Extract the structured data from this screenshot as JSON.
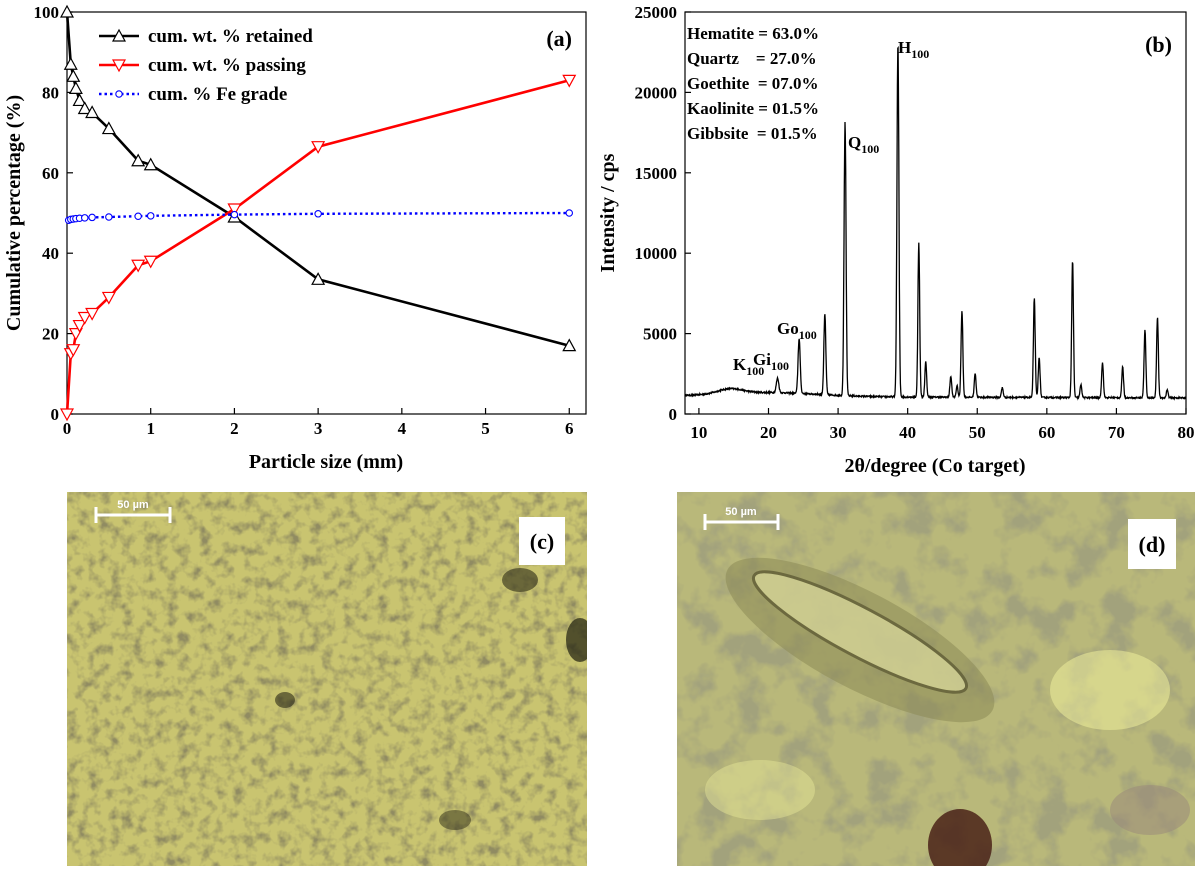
{
  "panels": {
    "a": {
      "label": "(a)",
      "chart_data": {
        "type": "line",
        "xlabel": "Particle size (mm)",
        "ylabel": "Cumulative percentage (%)",
        "xlim": [
          0,
          6.2
        ],
        "ylim": [
          0,
          100
        ],
        "xticks": [
          "0",
          "1",
          "2",
          "3",
          "4",
          "5",
          "6"
        ],
        "yticks": [
          "0",
          "20",
          "40",
          "60",
          "80",
          "100"
        ],
        "legend_position": "top-left",
        "series": [
          {
            "name": "cum. wt. % retained",
            "color": "#000000",
            "marker": "triangle-up",
            "x": [
              0,
              0.045,
              0.075,
              0.106,
              0.15,
              0.212,
              0.3,
              0.5,
              0.85,
              1.0,
              2.0,
              3.0,
              6.0
            ],
            "y": [
              100,
              87,
              84,
              81,
              78,
              76,
              75,
              71,
              63,
              62,
              49,
              33.5,
              17
            ]
          },
          {
            "name": "cum. wt. % passing",
            "color": "#ff0000",
            "marker": "triangle-down",
            "x": [
              0,
              0.045,
              0.075,
              0.106,
              0.15,
              0.212,
              0.3,
              0.5,
              0.85,
              1.0,
              2.0,
              3.0,
              6.0
            ],
            "y": [
              0,
              15,
              16,
              20,
              22,
              24,
              25,
              29,
              37,
              38,
              51,
              66.5,
              83
            ]
          },
          {
            "name": "cum. % Fe grade",
            "color": "#0000ff",
            "marker": "circle",
            "dotted": true,
            "x": [
              0.02,
              0.045,
              0.075,
              0.106,
              0.15,
              0.212,
              0.3,
              0.5,
              0.85,
              1.0,
              2.0,
              3.0,
              6.0
            ],
            "y": [
              48.2,
              48.4,
              48.5,
              48.6,
              48.7,
              48.8,
              48.9,
              49.0,
              49.2,
              49.3,
              49.6,
              49.8,
              50.0
            ]
          }
        ]
      }
    },
    "b": {
      "label": "(b)",
      "composition": [
        "Hematite = 63.0%",
        "Quartz    = 27.0%",
        "Goethite  = 07.0%",
        "Kaolinite = 01.5%",
        "Gibbsite  = 01.5%"
      ],
      "peak_labels": [
        {
          "main": "K",
          "sub": "100",
          "x": 14.5
        },
        {
          "main": "Gi",
          "sub": "100",
          "x": 21.3
        },
        {
          "main": "Go",
          "sub": "100",
          "x": 24.3
        },
        {
          "main": "Q",
          "sub": "100",
          "x": 31.0
        },
        {
          "main": "H",
          "sub": "100",
          "x": 38.6
        }
      ],
      "chart_data": {
        "type": "line",
        "xlabel": "2θ/degree (Co target)",
        "ylabel": "Intensity / cps",
        "xlim": [
          8,
          80
        ],
        "ylim": [
          0,
          25000
        ],
        "xticks": [
          "10",
          "20",
          "30",
          "40",
          "50",
          "60",
          "70",
          "80"
        ],
        "yticks": [
          "0",
          "5000",
          "10000",
          "15000",
          "20000",
          "25000"
        ],
        "series": [
          {
            "color": "#000000",
            "baseline_start": 1100,
            "baseline_end": 1000,
            "peaks": [
              [
                14.5,
                300,
                2.5
              ],
              [
                21.3,
                900,
                0.25
              ],
              [
                24.4,
                3400,
                0.22
              ],
              [
                28.1,
                5000,
                0.2
              ],
              [
                31.0,
                17000,
                0.2
              ],
              [
                38.6,
                22000,
                0.2
              ],
              [
                41.6,
                9600,
                0.18
              ],
              [
                42.6,
                2200,
                0.18
              ],
              [
                46.2,
                1300,
                0.18
              ],
              [
                47.1,
                700,
                0.18
              ],
              [
                47.8,
                5400,
                0.18
              ],
              [
                49.7,
                1500,
                0.18
              ],
              [
                53.6,
                600,
                0.18
              ],
              [
                58.2,
                6200,
                0.18
              ],
              [
                58.9,
                2500,
                0.18
              ],
              [
                63.7,
                8500,
                0.18
              ],
              [
                64.9,
                800,
                0.18
              ],
              [
                68.0,
                2200,
                0.18
              ],
              [
                70.9,
                1900,
                0.18
              ],
              [
                74.1,
                4200,
                0.18
              ],
              [
                75.9,
                5000,
                0.18
              ],
              [
                77.3,
                500,
                0.18
              ]
            ]
          }
        ]
      }
    },
    "c": {
      "label": "(c)",
      "scale_bar": "50 µm"
    },
    "d": {
      "label": "(d)",
      "scale_bar": "50 µm"
    }
  }
}
